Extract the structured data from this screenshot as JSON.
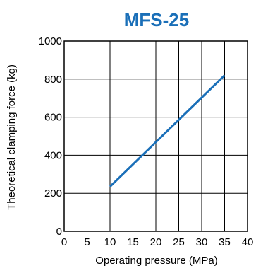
{
  "chart_data": {
    "type": "line",
    "title": "MFS-25",
    "xlabel": "Operating pressure (MPa)",
    "ylabel": "Theoretical clamping force (kg)",
    "xlim": [
      0,
      40
    ],
    "ylim": [
      0,
      1000
    ],
    "xticks": [
      0,
      5,
      10,
      15,
      20,
      25,
      30,
      35,
      40
    ],
    "yticks": [
      0,
      200,
      400,
      600,
      800,
      1000
    ],
    "grid": true,
    "series": [
      {
        "x": [
          10,
          35
        ],
        "y": [
          235,
          820
        ]
      }
    ],
    "colors": {
      "title": "#1a6fb8",
      "line": "#1a6fb8",
      "grid": "#000000"
    }
  }
}
